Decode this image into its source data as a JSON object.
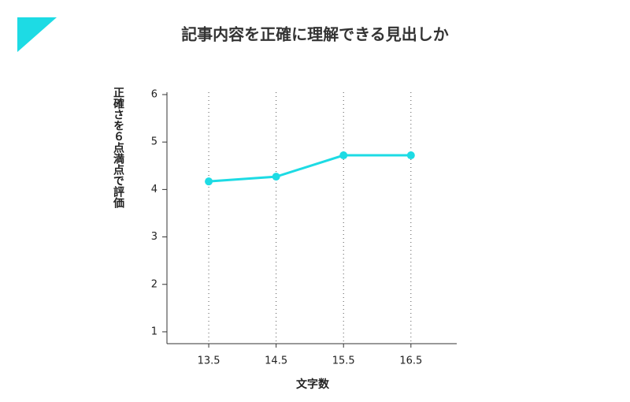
{
  "chart_data": {
    "type": "line",
    "title": "記事内容を正確に理解できる見出しか",
    "x_label": "文字数",
    "y_label": "正確さを６点満点で評価",
    "x": [
      13.5,
      14.5,
      15.5,
      16.5
    ],
    "series": [
      {
        "name": "正確さ",
        "color": "#1ddbe4",
        "values": [
          4.17,
          4.27,
          4.72,
          4.72
        ]
      }
    ],
    "xlim": [
      12.88,
      17.18
    ],
    "xticks": [
      13.5,
      14.5,
      15.5,
      16.5
    ],
    "ylim": [
      0.75,
      6.05
    ],
    "yticks": [
      1,
      2,
      3,
      4,
      5,
      6
    ],
    "grid": true
  }
}
